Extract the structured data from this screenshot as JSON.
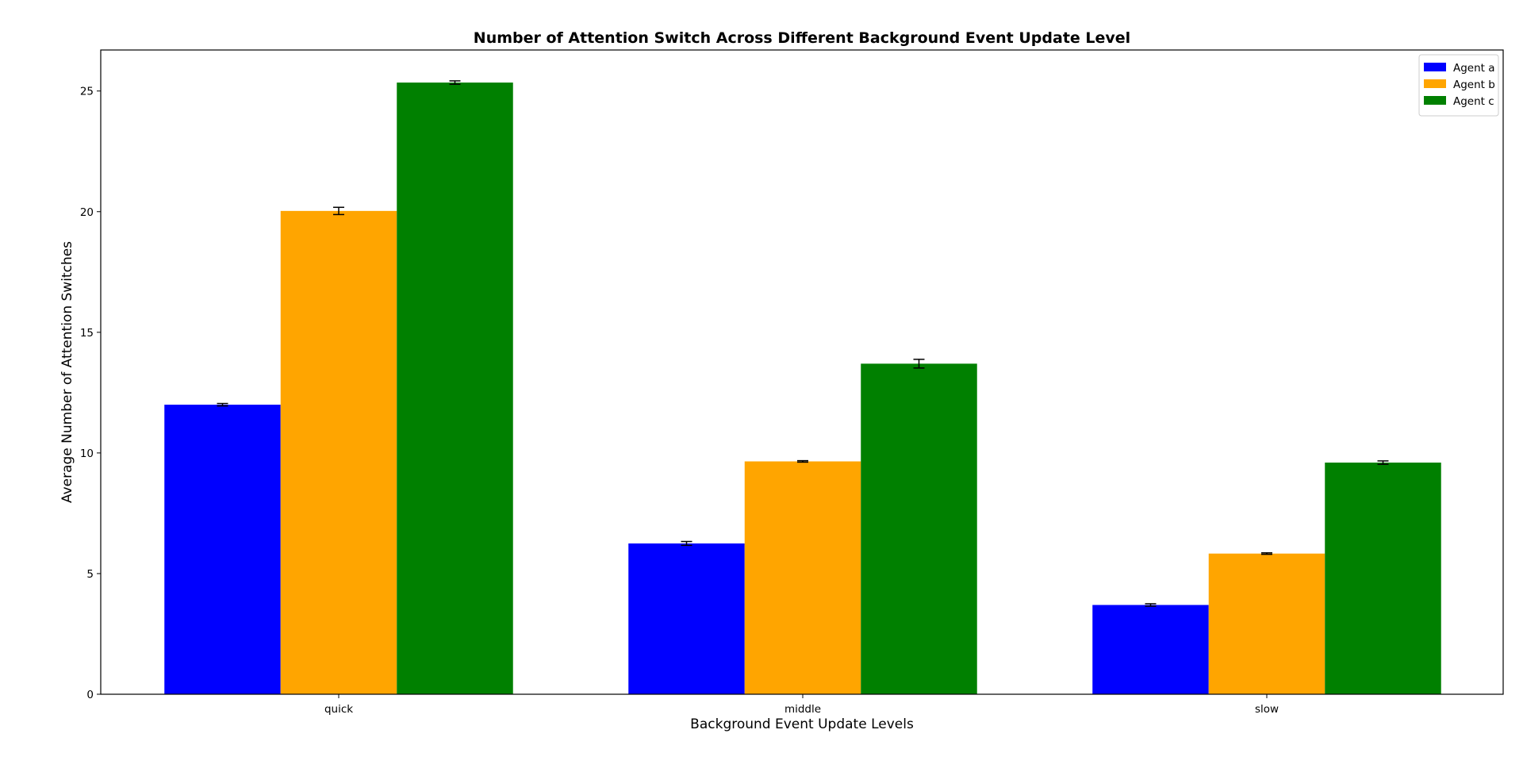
{
  "chart_data": {
    "type": "bar",
    "title": "Number of Attention Switch Across Different Background Event Update Level",
    "xlabel": "Background Event Update Levels",
    "ylabel": "Average Number of Attention Switches",
    "categories": [
      "quick",
      "middle",
      "slow"
    ],
    "ylim": [
      0,
      26.7
    ],
    "yticks": [
      0,
      5,
      10,
      15,
      20,
      25
    ],
    "grid": false,
    "legend_position": "top-right",
    "series": [
      {
        "name": "Agent a",
        "color": "#0000ff",
        "values": [
          12.0,
          6.25,
          3.7
        ],
        "errors": [
          0.05,
          0.08,
          0.05
        ]
      },
      {
        "name": "Agent b",
        "color": "#ffa500",
        "values": [
          20.03,
          9.65,
          5.83
        ],
        "errors": [
          0.15,
          0.03,
          0.03
        ]
      },
      {
        "name": "Agent c",
        "color": "#008000",
        "values": [
          25.35,
          13.7,
          9.6
        ],
        "errors": [
          0.07,
          0.18,
          0.07
        ]
      }
    ]
  }
}
